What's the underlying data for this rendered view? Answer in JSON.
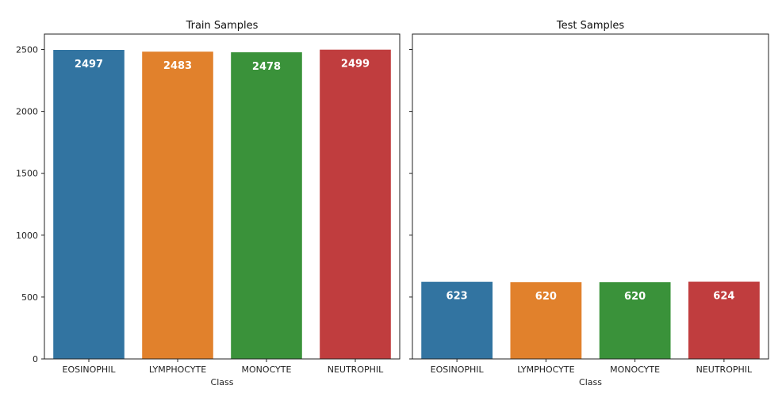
{
  "chart_data": [
    {
      "type": "bar",
      "title": "Train Samples",
      "xlabel": "Class",
      "ylabel": "",
      "categories": [
        "EOSINOPHIL",
        "LYMPHOCYTE",
        "MONOCYTE",
        "NEUTROPHIL"
      ],
      "values": [
        2497,
        2483,
        2478,
        2499
      ],
      "colors": [
        "#3274a1",
        "#e1812c",
        "#3a923a",
        "#c03d3e"
      ],
      "ylim": [
        0,
        2625
      ],
      "yticks": [
        0,
        500,
        1000,
        1500,
        2000,
        2500
      ],
      "ytick_labels_shown": true,
      "grid": false
    },
    {
      "type": "bar",
      "title": "Test Samples",
      "xlabel": "Class",
      "ylabel": "",
      "categories": [
        "EOSINOPHIL",
        "LYMPHOCYTE",
        "MONOCYTE",
        "NEUTROPHIL"
      ],
      "values": [
        623,
        620,
        620,
        624
      ],
      "colors": [
        "#3274a1",
        "#e1812c",
        "#3a923a",
        "#c03d3e"
      ],
      "ylim": [
        0,
        2625
      ],
      "yticks": [
        0,
        500,
        1000,
        1500,
        2000,
        2500
      ],
      "ytick_labels_shown": false,
      "grid": false
    }
  ]
}
